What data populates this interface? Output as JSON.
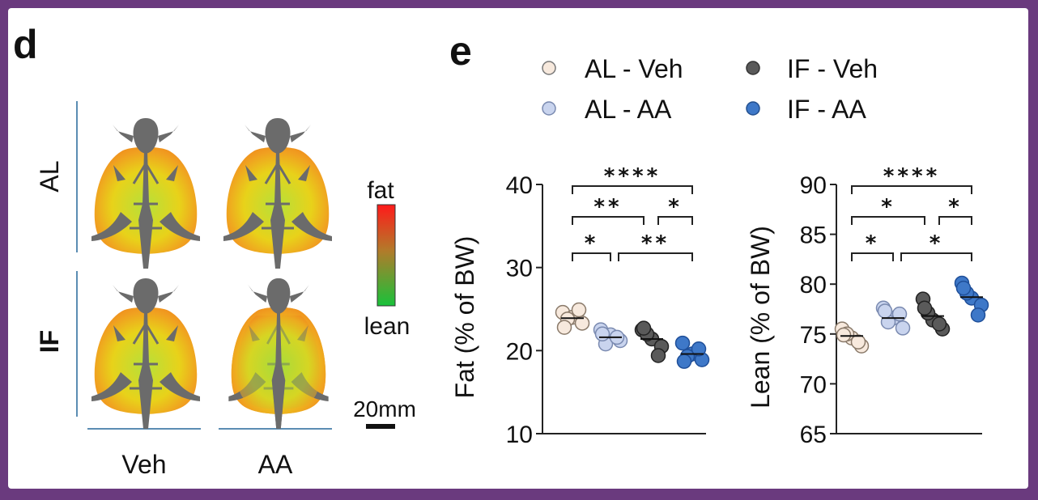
{
  "panel_d": {
    "letter": "d",
    "row_labels": [
      "AL",
      "IF"
    ],
    "col_labels": [
      "Veh",
      "AA"
    ],
    "scale_top": "fat",
    "scale_bottom": "lean",
    "scalebar": "20mm"
  },
  "panel_e": {
    "letter": "e",
    "legend": [
      {
        "label": "AL - Veh",
        "color": "#f7e9dd"
      },
      {
        "label": "IF - Veh",
        "color": "#5a5a5a"
      },
      {
        "label": "AL - AA",
        "color": "#c9d4ee"
      },
      {
        "label": "IF - AA",
        "color": "#3e78c8"
      }
    ]
  },
  "chart_data": [
    {
      "type": "scatter",
      "title": "",
      "ylabel": "Fat (% of  BW)",
      "ylim": [
        10,
        40
      ],
      "yticks": [
        10,
        20,
        30,
        40
      ],
      "groups": [
        "AL - Veh",
        "AL - AA",
        "IF - Veh",
        "IF - AA"
      ],
      "colors": [
        "#f7e9dd",
        "#c9d4ee",
        "#5a5a5a",
        "#3e78c8"
      ],
      "points": [
        [
          24.6,
          24.0,
          23.3,
          23.8,
          24.9,
          22.8
        ],
        [
          22.5,
          21.9,
          21.2,
          20.8,
          21.6,
          22.0
        ],
        [
          22.5,
          21.4,
          20.5,
          22.0,
          19.4,
          22.7
        ],
        [
          20.9,
          19.6,
          18.9,
          19.3,
          20.2,
          18.7
        ]
      ],
      "means": [
        23.9,
        21.6,
        21.4,
        19.6
      ],
      "significance": [
        {
          "from": 0,
          "to": 3,
          "label": "****"
        },
        {
          "from": 0,
          "to": 2,
          "label": "**"
        },
        {
          "from": 2,
          "to": 3,
          "label": "*"
        },
        {
          "from": 0,
          "to": 1,
          "label": "*"
        },
        {
          "from": 1,
          "to": 3,
          "label": "**"
        }
      ]
    },
    {
      "type": "scatter",
      "title": "",
      "ylabel": "Lean (% of  BW)",
      "ylim": [
        65,
        90
      ],
      "yticks": [
        65,
        70,
        75,
        80,
        85,
        90
      ],
      "groups": [
        "AL - Veh",
        "AL - AA",
        "IF - Veh",
        "IF - AA"
      ],
      "colors": [
        "#f7e9dd",
        "#c9d4ee",
        "#5a5a5a",
        "#3e78c8"
      ],
      "points": [
        [
          75.5,
          74.6,
          73.8,
          75.0,
          74.2,
          74.9
        ],
        [
          77.6,
          76.6,
          75.6,
          76.2,
          77.0,
          77.3
        ],
        [
          78.5,
          76.4,
          75.5,
          77.1,
          76.0,
          77.6
        ],
        [
          80.1,
          78.6,
          77.9,
          79.1,
          76.9,
          79.6
        ]
      ],
      "means": [
        74.8,
        76.6,
        76.8,
        78.7
      ],
      "significance": [
        {
          "from": 0,
          "to": 3,
          "label": "****"
        },
        {
          "from": 0,
          "to": 2,
          "label": "*"
        },
        {
          "from": 2,
          "to": 3,
          "label": "*"
        },
        {
          "from": 0,
          "to": 1,
          "label": "*"
        },
        {
          "from": 1,
          "to": 3,
          "label": "*"
        }
      ]
    }
  ]
}
